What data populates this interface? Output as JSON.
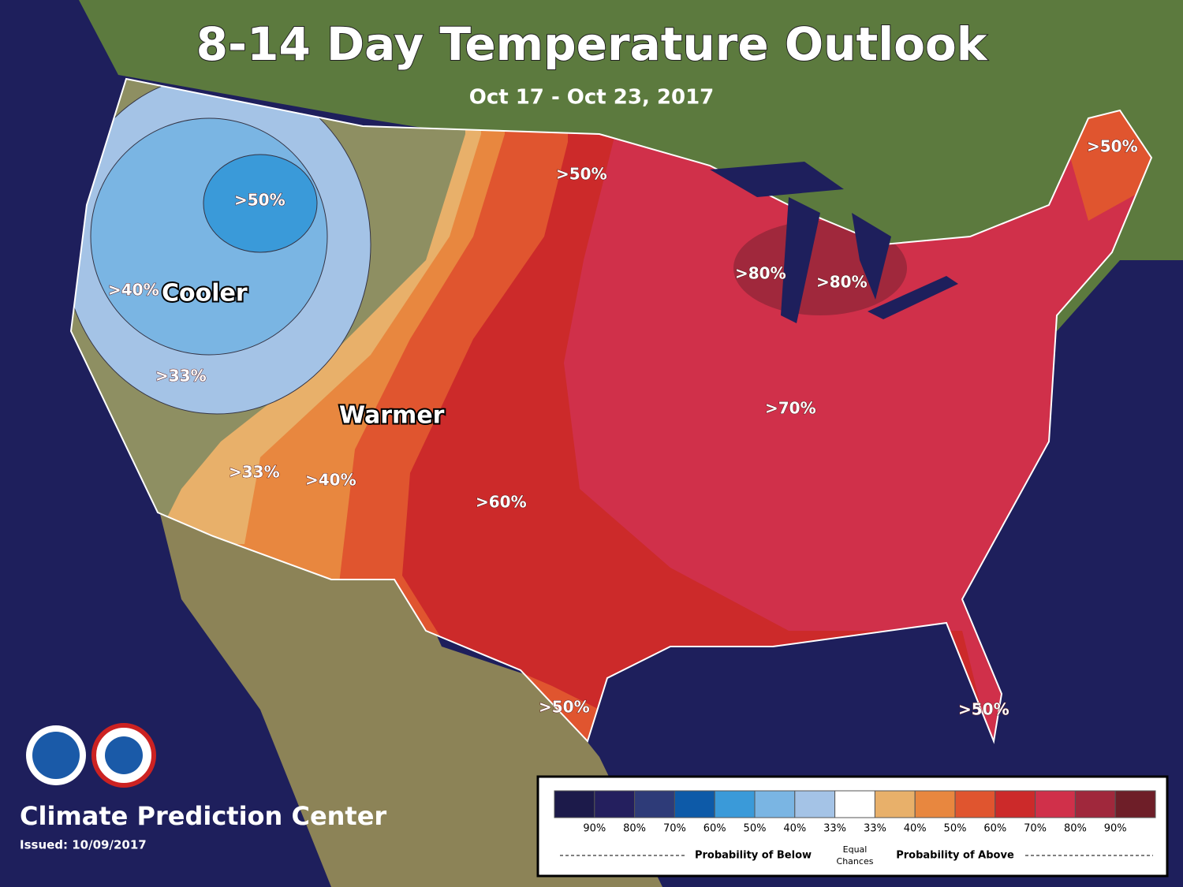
{
  "header": {
    "title": "8-14 Day Temperature Outlook",
    "subtitle": "Oct 17 - Oct 23, 2017"
  },
  "map_labels": [
    ">50%",
    ">40%",
    "Cooler",
    ">33%",
    "Warmer",
    ">33%",
    ">40%",
    ">50%",
    ">60%",
    ">80%",
    ">80%",
    ">70%",
    ">50%",
    ">50%",
    ">50%"
  ],
  "legend": {
    "colors": [
      "#1c1a4a",
      "#241f5e",
      "#2e3b78",
      "#0d5aa8",
      "#3a9ad9",
      "#7ab5e3",
      "#a4c3e6",
      "#ffffff",
      "#e8b06a",
      "#e8873f",
      "#e0552f",
      "#cc2a2a",
      "#d0304a",
      "#a0283c",
      "#6e1e28"
    ],
    "labels": [
      "90%",
      "80%",
      "70%",
      "60%",
      "50%",
      "40%",
      "33%",
      "33%",
      "40%",
      "50%",
      "60%",
      "70%",
      "80%",
      "90%"
    ],
    "below": "Probability of Below",
    "equal": [
      "Equal",
      "Chances"
    ],
    "above": "Probability of Above"
  },
  "footer": {
    "center": "Climate Prediction Center",
    "issued": "Issued: 10/09/2017"
  }
}
